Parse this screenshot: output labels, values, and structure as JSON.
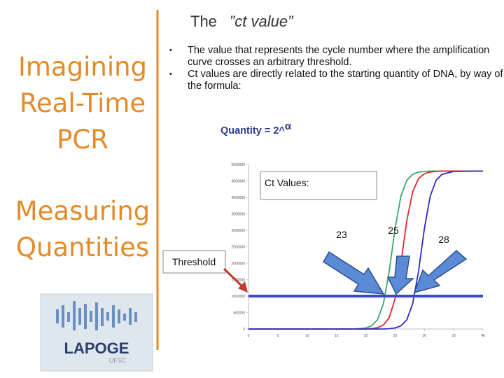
{
  "slide": {
    "title": "The",
    "title_italic": "”ct value”",
    "side_heading_1": [
      "Imagining",
      "Real-Time",
      "PCR"
    ],
    "side_heading_2": [
      "Measuring",
      "Quantities"
    ],
    "bullets": [
      "The value that represents the cycle number where the amplification curve crosses an arbitrary threshold.",
      "Ct values are directly related to the starting quantity of DNA, by way of the formula:"
    ],
    "formula": "Quantity = 2^",
    "formula_exponent": "α",
    "logo": {
      "name": "LAPOGE",
      "subtitle": "UFSC"
    }
  },
  "chart_data": {
    "type": "line",
    "x": [
      0,
      5,
      10,
      15,
      18,
      20,
      21,
      22,
      23,
      24,
      25,
      26,
      27,
      28,
      29,
      30,
      31,
      32,
      33,
      35,
      40
    ],
    "series": [
      {
        "color": "#3aa76d",
        "values": [
          0,
          0,
          0,
          0,
          0,
          32000,
          96000,
          280000,
          763000,
          1750000,
          3050000,
          4040000,
          4520000,
          4700000,
          4770000,
          4790000,
          4800000,
          4800000,
          4800000,
          4800000,
          4800000
        ]
      },
      {
        "color": "#e0262b",
        "values": [
          0,
          0,
          0,
          0,
          0,
          0,
          13000,
          40000,
          120000,
          345000,
          916000,
          2000000,
          3290000,
          4170000,
          4570000,
          4720000,
          4770000,
          4790000,
          4800000,
          4800000,
          4800000
        ]
      },
      {
        "color": "#2a2ac8",
        "values": [
          0,
          0,
          0,
          0,
          0,
          0,
          0,
          0,
          0,
          11000,
          32000,
          96000,
          280000,
          763000,
          1750000,
          3050000,
          4040000,
          4520000,
          4700000,
          4790000,
          4800000
        ]
      }
    ],
    "xlim": [
      0,
      40
    ],
    "xticks": [
      0,
      5,
      10,
      15,
      20,
      25,
      30,
      35,
      40
    ],
    "ylim": [
      0,
      5000000
    ],
    "yticks": [
      0,
      500000,
      1000000,
      1500000,
      2000000,
      2500000,
      3000000,
      3500000,
      4000000,
      4500000,
      5000000
    ],
    "threshold": {
      "value": 1000000,
      "label": "Threshold",
      "color": "#3b4bc8"
    },
    "ct_title": "Ct Values:",
    "ct_labels": [
      "23",
      "25",
      "28"
    ]
  }
}
